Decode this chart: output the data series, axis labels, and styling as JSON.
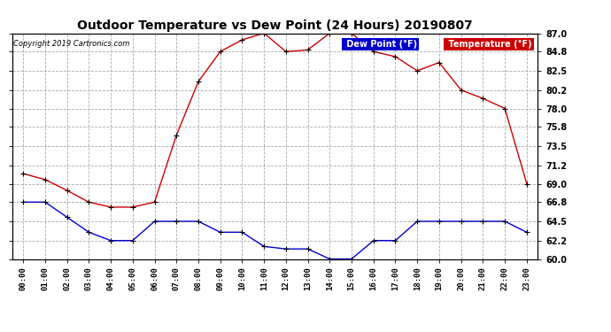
{
  "title": "Outdoor Temperature vs Dew Point (24 Hours) 20190807",
  "copyright": "Copyright 2019 Cartronics.com",
  "hours": [
    "00:00",
    "01:00",
    "02:00",
    "03:00",
    "04:00",
    "05:00",
    "06:00",
    "07:00",
    "08:00",
    "09:00",
    "10:00",
    "11:00",
    "12:00",
    "13:00",
    "14:00",
    "15:00",
    "16:00",
    "17:00",
    "18:00",
    "19:00",
    "20:00",
    "21:00",
    "22:00",
    "23:00"
  ],
  "temperature": [
    70.2,
    69.5,
    68.2,
    66.8,
    66.2,
    66.2,
    66.8,
    74.8,
    81.2,
    84.8,
    86.2,
    87.0,
    84.8,
    85.0,
    87.0,
    87.0,
    84.8,
    84.2,
    82.5,
    83.5,
    80.2,
    79.2,
    78.0,
    69.0
  ],
  "dew_point": [
    66.8,
    66.8,
    65.0,
    63.2,
    62.2,
    62.2,
    64.5,
    64.5,
    64.5,
    63.2,
    63.2,
    61.5,
    61.2,
    61.2,
    60.0,
    60.0,
    62.2,
    62.2,
    64.5,
    64.5,
    64.5,
    64.5,
    64.5,
    63.2
  ],
  "ylim": [
    60.0,
    87.0
  ],
  "yticks": [
    60.0,
    62.2,
    64.5,
    66.8,
    69.0,
    71.2,
    73.5,
    75.8,
    78.0,
    80.2,
    82.5,
    84.8,
    87.0
  ],
  "temp_color": "#cc0000",
  "dew_color": "#0000cc",
  "bg_color": "#ffffff",
  "grid_color": "#aaaaaa",
  "legend_temp_bg": "#cc0000",
  "legend_dew_bg": "#0000cc",
  "legend_text_color": "#ffffff"
}
